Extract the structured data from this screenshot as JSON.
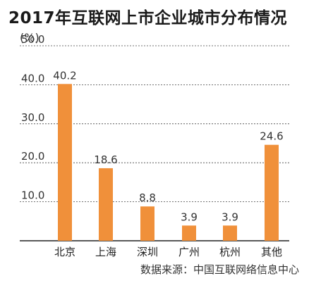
{
  "title": "2017年互联网上市企业城市分布情况",
  "unit": "(%)",
  "source": "数据来源：中国互联网络信息中心",
  "chart_data": {
    "type": "bar",
    "title": "2017年互联网上市企业城市分布情况",
    "ylabel": "(%)",
    "xlabel": "",
    "categories": [
      "北京",
      "上海",
      "深圳",
      "广州",
      "杭州",
      "其他"
    ],
    "values": [
      40.2,
      18.6,
      8.8,
      3.9,
      3.9,
      24.6
    ],
    "value_labels": [
      "40.2",
      "18.6",
      "8.8",
      "3.9",
      "3.9",
      "24.6"
    ],
    "ylim": [
      0,
      50
    ],
    "yticks": [
      "10.0",
      "20.0",
      "30.0",
      "40.0",
      "50.0"
    ],
    "grid": true,
    "bar_color": "#F0903A",
    "source": "数据来源：中国互联网络信息中心"
  }
}
